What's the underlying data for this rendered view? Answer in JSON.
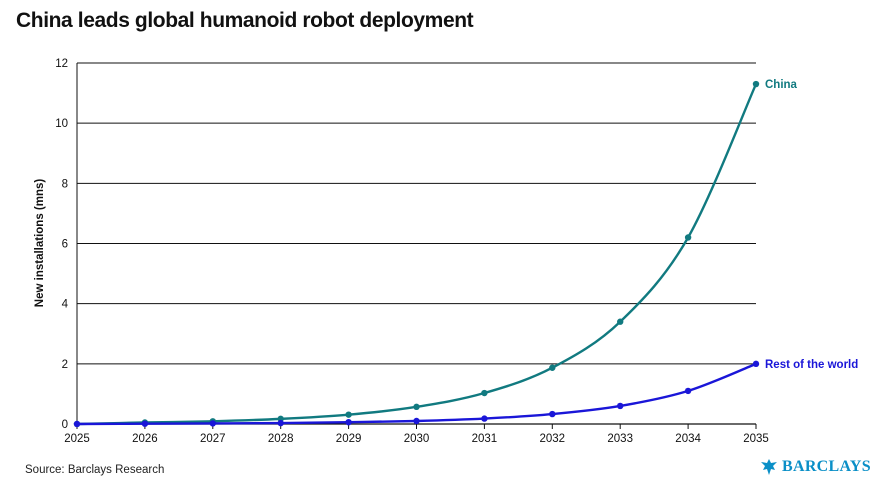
{
  "title": "China leads global humanoid robot deployment",
  "source": "Source: Barclays Research",
  "logo_text": "BARCLAYS",
  "colors": {
    "china": "#117a80",
    "rest": "#1a16d8",
    "grid": "#111111",
    "logo": "#0a8fc7"
  },
  "chart_data": {
    "type": "line",
    "ylabel": "New installations (mns)",
    "xlabel": "",
    "x": [
      2025,
      2026,
      2027,
      2028,
      2029,
      2030,
      2031,
      2032,
      2033,
      2034,
      2035
    ],
    "xticks": [
      "2025",
      "2026",
      "2027",
      "2028",
      "2029",
      "2030",
      "2031",
      "2032",
      "2033",
      "2034",
      "2035"
    ],
    "yticks": [
      "0",
      "2",
      "4",
      "6",
      "8",
      "10",
      "12"
    ],
    "ylim": [
      0,
      12
    ],
    "grid": true,
    "series": [
      {
        "name": "China",
        "color": "#117a80",
        "values": [
          0.0,
          0.05,
          0.09,
          0.17,
          0.31,
          0.57,
          1.03,
          1.87,
          3.4,
          6.2,
          11.3
        ]
      },
      {
        "name": "Rest of the world",
        "color": "#1a16d8",
        "values": [
          0.0,
          0.01,
          0.02,
          0.03,
          0.06,
          0.1,
          0.18,
          0.33,
          0.6,
          1.1,
          2.0
        ]
      }
    ]
  }
}
